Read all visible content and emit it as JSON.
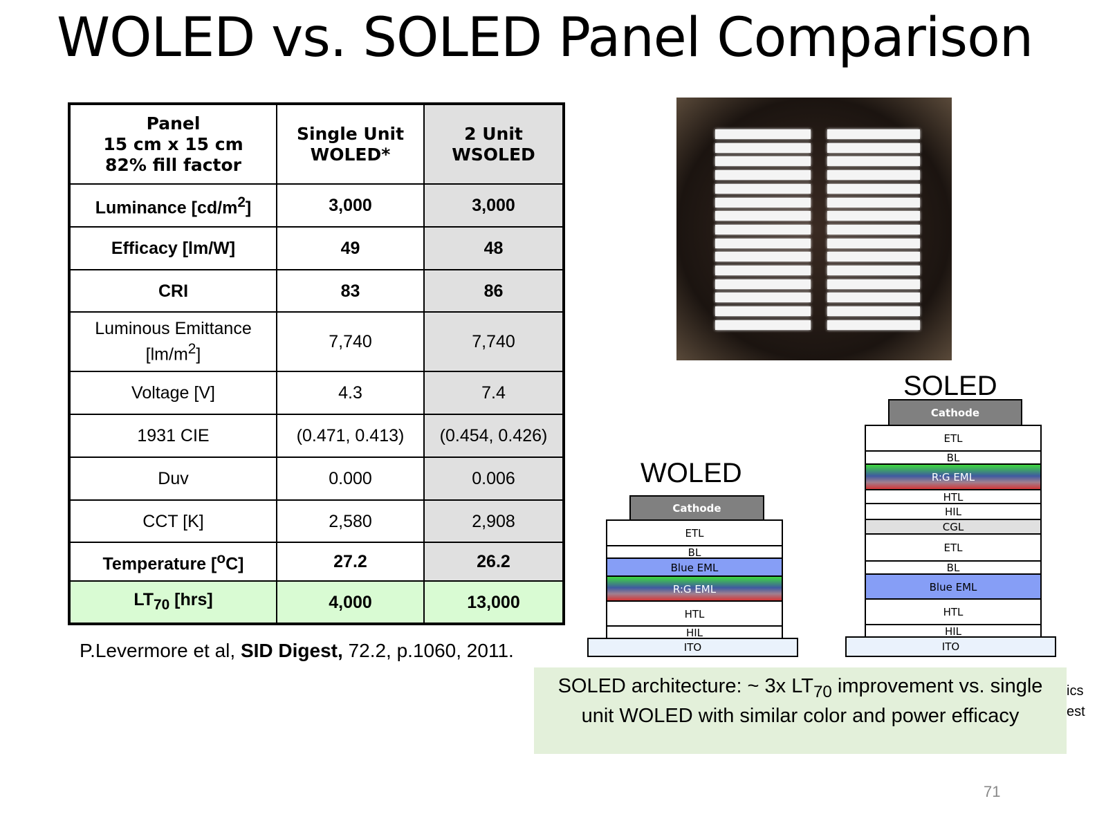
{
  "title": "WOLED vs. SOLED Panel Comparison",
  "table": {
    "header": [
      "Panel\n15 cm x 15 cm\n82% fill factor",
      "Single Unit\nWOLED*",
      "2 Unit\nWSOLED"
    ],
    "rows": [
      {
        "label": "Luminance [cd/m",
        "sup": "2",
        "suffix": "]",
        "woled": "3,000",
        "soled": "3,000",
        "bold": true
      },
      {
        "label": "Efficacy [lm/W]",
        "woled": "49",
        "soled": "48",
        "bold": true
      },
      {
        "label": "CRI",
        "woled": "83",
        "soled": "86",
        "bold": true
      },
      {
        "label": "Luminous Emittance",
        "label2": "[lm/m",
        "sup": "2",
        "suffix": "]",
        "woled": "7,740",
        "soled": "7,740"
      },
      {
        "label": "Voltage [V]",
        "woled": "4.3",
        "soled": "7.4"
      },
      {
        "label": "1931 CIE",
        "woled": "(0.471, 0.413)",
        "soled": "(0.454, 0.426)"
      },
      {
        "label": "Duv",
        "woled": "0.000",
        "soled": "0.006"
      },
      {
        "label": "CCT [K]",
        "woled": "2,580",
        "soled": "2,908"
      },
      {
        "label": "Temperature [",
        "sup": "o",
        "suffix": "C]",
        "woled": "27.2",
        "soled": "26.2",
        "bold": true
      },
      {
        "label": "LT",
        "sub": "70",
        "suffix": " [hrs]",
        "woled": "4,000",
        "soled": "13,000",
        "bold": true,
        "highlight": true
      }
    ]
  },
  "citation": {
    "authors": "P.Levermore et al, ",
    "journal": "SID Digest,",
    "rest": " 72.2, p.1060, 2011."
  },
  "woled": {
    "title": "WOLED",
    "layers": [
      "Cathode",
      "ETL",
      "BL",
      "Blue EML",
      "R:G EML",
      "HTL",
      "HIL",
      "ITO"
    ]
  },
  "soled": {
    "title": "SOLED",
    "layers": [
      "Cathode",
      "ETL",
      "BL",
      "R:G EML",
      "HTL",
      "HIL",
      "CGL",
      "ETL",
      "BL",
      "Blue EML",
      "HTL",
      "HIL",
      "ITO"
    ]
  },
  "note": {
    "line1a": "SOLED architecture: ~ 3x LT",
    "line1sub": "70",
    "line1b": " improvement vs. single",
    "line2": "unit WOLED with similar color and power efficacy"
  },
  "partial_text": [
    "ics",
    "est"
  ],
  "page_number": "71"
}
